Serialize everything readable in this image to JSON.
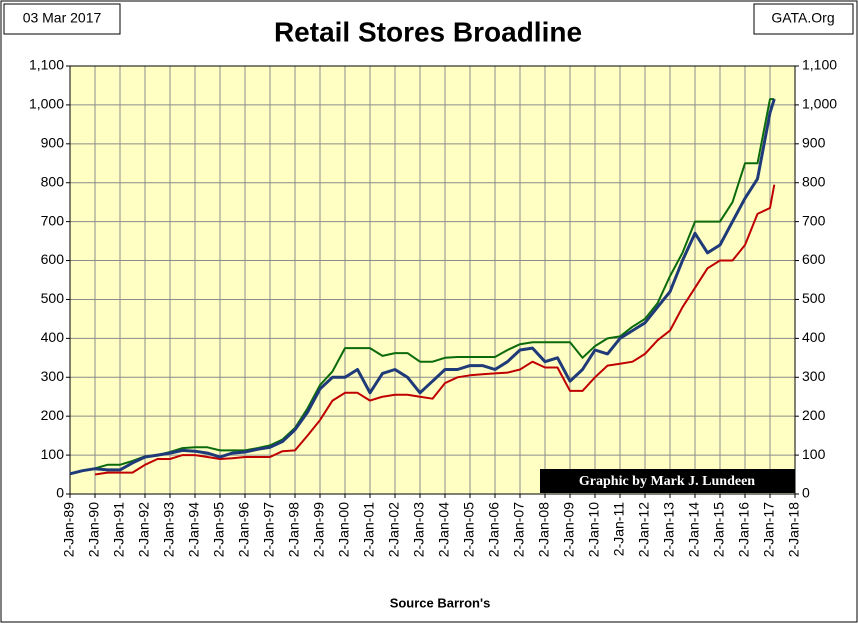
{
  "chart_data": {
    "type": "line",
    "title": "Retail Stores Broadline",
    "date_label": "03 Mar 2017",
    "source_label": "GATA.Org",
    "credit": "Graphic by Mark J. Lundeen",
    "xlabel": "Source Barron's",
    "xlim": [
      1989,
      2018
    ],
    "ylim": [
      0,
      1100
    ],
    "grid": true,
    "background": "#ffffc4",
    "xticks": [
      {
        "value": 1989,
        "label": "2-Jan-89"
      },
      {
        "value": 1990,
        "label": "2-Jan-90"
      },
      {
        "value": 1991,
        "label": "2-Jan-91"
      },
      {
        "value": 1992,
        "label": "2-Jan-92"
      },
      {
        "value": 1993,
        "label": "2-Jan-93"
      },
      {
        "value": 1994,
        "label": "2-Jan-94"
      },
      {
        "value": 1995,
        "label": "2-Jan-95"
      },
      {
        "value": 1996,
        "label": "2-Jan-96"
      },
      {
        "value": 1997,
        "label": "2-Jan-97"
      },
      {
        "value": 1998,
        "label": "2-Jan-98"
      },
      {
        "value": 1999,
        "label": "2-Jan-99"
      },
      {
        "value": 2000,
        "label": "2-Jan-00"
      },
      {
        "value": 2001,
        "label": "2-Jan-01"
      },
      {
        "value": 2002,
        "label": "2-Jan-02"
      },
      {
        "value": 2003,
        "label": "2-Jan-03"
      },
      {
        "value": 2004,
        "label": "2-Jan-04"
      },
      {
        "value": 2005,
        "label": "2-Jan-05"
      },
      {
        "value": 2006,
        "label": "2-Jan-06"
      },
      {
        "value": 2007,
        "label": "2-Jan-07"
      },
      {
        "value": 2008,
        "label": "2-Jan-08"
      },
      {
        "value": 2009,
        "label": "2-Jan-09"
      },
      {
        "value": 2010,
        "label": "2-Jan-10"
      },
      {
        "value": 2011,
        "label": "2-Jan-11"
      },
      {
        "value": 2012,
        "label": "2-Jan-12"
      },
      {
        "value": 2013,
        "label": "2-Jan-13"
      },
      {
        "value": 2014,
        "label": "2-Jan-14"
      },
      {
        "value": 2015,
        "label": "2-Jan-15"
      },
      {
        "value": 2016,
        "label": "2-Jan-16"
      },
      {
        "value": 2017,
        "label": "2-Jan-17"
      },
      {
        "value": 2018,
        "label": "2-Jan-18"
      }
    ],
    "yticks": [
      0,
      100,
      200,
      300,
      400,
      500,
      600,
      700,
      800,
      900,
      {
        "value": 1000,
        "label": "1,000"
      },
      {
        "value": 1100,
        "label": "1,100"
      }
    ],
    "x": [
      1989.0,
      1989.5,
      1990.0,
      1990.5,
      1991.0,
      1991.5,
      1992.0,
      1992.5,
      1993.0,
      1993.5,
      1994.0,
      1994.5,
      1995.0,
      1995.5,
      1996.0,
      1996.5,
      1997.0,
      1997.5,
      1998.0,
      1998.5,
      1999.0,
      1999.5,
      2000.0,
      2000.5,
      2001.0,
      2001.5,
      2002.0,
      2002.5,
      2003.0,
      2003.5,
      2004.0,
      2004.5,
      2005.0,
      2005.5,
      2006.0,
      2006.5,
      2007.0,
      2007.5,
      2008.0,
      2008.5,
      2009.0,
      2009.5,
      2010.0,
      2010.5,
      2011.0,
      2011.5,
      2012.0,
      2012.5,
      2013.0,
      2013.5,
      2014.0,
      2014.5,
      2015.0,
      2015.5,
      2016.0,
      2016.5,
      2017.0,
      2017.17
    ],
    "series": [
      {
        "color": "#c00000",
        "width": 2,
        "values": [
          null,
          null,
          50,
          55,
          55,
          55,
          75,
          90,
          90,
          100,
          100,
          95,
          90,
          92,
          95,
          95,
          95,
          110,
          112,
          150,
          190,
          240,
          260,
          260,
          240,
          250,
          255,
          255,
          250,
          245,
          285,
          300,
          305,
          308,
          310,
          312,
          320,
          340,
          325,
          325,
          265,
          265,
          300,
          330,
          335,
          340,
          360,
          395,
          420,
          480,
          530,
          580,
          600,
          600,
          640,
          720,
          735,
          795
        ]
      },
      {
        "color": "#0b6b0b",
        "width": 2,
        "values": [
          null,
          null,
          66,
          75,
          75,
          85,
          97,
          100,
          108,
          118,
          120,
          120,
          112,
          112,
          112,
          118,
          125,
          140,
          170,
          220,
          280,
          315,
          375,
          375,
          375,
          355,
          362,
          362,
          340,
          340,
          350,
          352,
          352,
          352,
          352,
          370,
          385,
          390,
          390,
          390,
          390,
          350,
          380,
          400,
          405,
          430,
          450,
          490,
          560,
          620,
          700,
          700,
          700,
          750,
          850,
          850,
          1015,
          1015
        ]
      },
      {
        "color": "#1f3a78",
        "width": 3,
        "values": [
          52,
          60,
          65,
          62,
          62,
          80,
          95,
          100,
          105,
          112,
          110,
          105,
          95,
          105,
          108,
          115,
          120,
          135,
          165,
          210,
          270,
          300,
          300,
          320,
          260,
          310,
          320,
          300,
          260,
          290,
          320,
          320,
          330,
          330,
          320,
          340,
          370,
          375,
          340,
          350,
          290,
          320,
          370,
          360,
          400,
          420,
          440,
          480,
          520,
          600,
          670,
          620,
          640,
          700,
          760,
          810,
          980,
          1015
        ]
      }
    ]
  }
}
